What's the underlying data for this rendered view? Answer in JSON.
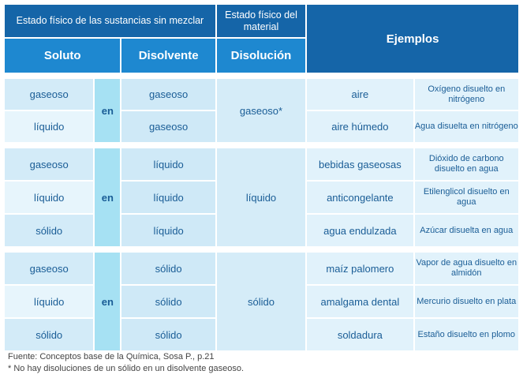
{
  "header": {
    "estado_sin_mezclar": "Estado físico de las sustancias sin mezclar",
    "estado_material": "Estado físico del material",
    "ejemplos": "Ejemplos",
    "soluto": "Soluto",
    "disolvente": "Disolvente",
    "disolucion": "Disolución"
  },
  "connector": "en",
  "groups": [
    {
      "disolucion": "gaseoso*",
      "rows": [
        {
          "soluto": "gaseoso",
          "disolvente": "gaseoso",
          "ejemplo": "aire",
          "descripcion": "Oxígeno disuelto en nitrógeno"
        },
        {
          "soluto": "líquido",
          "disolvente": "gaseoso",
          "ejemplo": "aire húmedo",
          "descripcion": "Agua disuelta en nitrógeno"
        }
      ]
    },
    {
      "disolucion": "líquido",
      "rows": [
        {
          "soluto": "gaseoso",
          "disolvente": "líquido",
          "ejemplo": "bebidas gaseosas",
          "descripcion": "Dióxido de carbono disuelto en agua"
        },
        {
          "soluto": "líquido",
          "disolvente": "líquido",
          "ejemplo": "anticongelante",
          "descripcion": "Etilenglicol disuelto en agua"
        },
        {
          "soluto": "sólido",
          "disolvente": "líquido",
          "ejemplo": "agua endulzada",
          "descripcion": "Azúcar disuelta en agua"
        }
      ]
    },
    {
      "disolucion": "sólido",
      "rows": [
        {
          "soluto": "gaseoso",
          "disolvente": "sólido",
          "ejemplo": "maíz palomero",
          "descripcion": "Vapor de agua disuelto en almidón"
        },
        {
          "soluto": "líquido",
          "disolvente": "sólido",
          "ejemplo": "amalgama dental",
          "descripcion": "Mercurio disuelto en plata"
        },
        {
          "soluto": "sólido",
          "disolvente": "sólido",
          "ejemplo": "soldadura",
          "descripcion": "Estaño disuelto en plomo"
        }
      ]
    }
  ],
  "footer": {
    "fuente": "Fuente: Conceptos base de la Química, Sosa P., p.21",
    "nota": "* No hay disoluciones de un sólido en un disolvente gaseoso."
  }
}
